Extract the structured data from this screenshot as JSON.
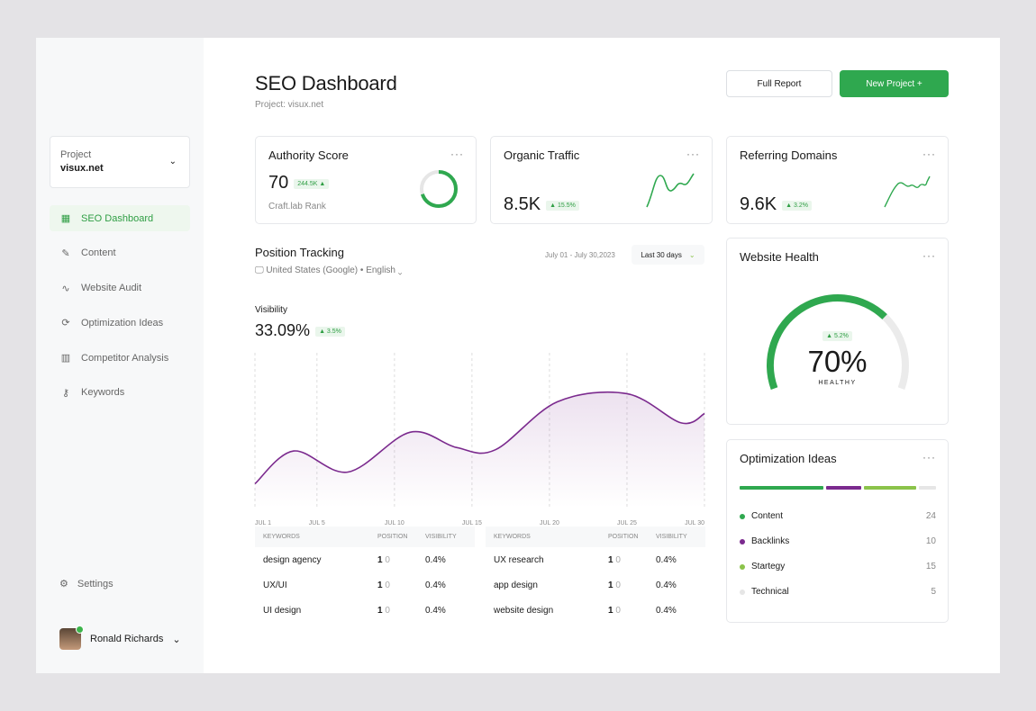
{
  "sidebar": {
    "project_label": "Project",
    "project_value": "visux.net",
    "items": [
      {
        "label": "SEO Dashboard",
        "icon": "grid-icon",
        "active": true
      },
      {
        "label": "Content",
        "icon": "pencil-icon"
      },
      {
        "label": "Website Audit",
        "icon": "pulse-icon"
      },
      {
        "label": "Optimization Ideas",
        "icon": "refresh-icon"
      },
      {
        "label": "Competitor Analysis",
        "icon": "bar-chart-icon"
      },
      {
        "label": "Keywords",
        "icon": "key-icon"
      }
    ],
    "settings": "Settings",
    "user": "Ronald Richards"
  },
  "header": {
    "title": "SEO Dashboard",
    "subtitle": "Project: visux.net",
    "full_report": "Full Report",
    "new_project": "New Project +"
  },
  "colors": {
    "accent": "#2fa84f",
    "purple": "#7b2a8e",
    "lightgreen": "#8bc34a"
  },
  "authority": {
    "title": "Authority Score",
    "value": "70",
    "badge": "244.5K ▲",
    "caption": "Craft.lab Rank",
    "ring_percent": 70
  },
  "organic": {
    "title": "Organic Traffic",
    "value": "8.5K",
    "badge": "▲ 15.5%"
  },
  "referring": {
    "title": "Referring Domains",
    "value": "9.6K",
    "badge": "▲ 3.2%"
  },
  "tracking": {
    "title": "Position Tracking",
    "location": "United States (Google) • English",
    "date_range": "July 01 - July 30,2023",
    "period": "Last 30 days",
    "visibility_label": "Visibility",
    "visibility_value": "33.09%",
    "visibility_badge": "▲ 3.5%"
  },
  "chart_data": {
    "type": "area",
    "x_ticks": [
      "JUL 1",
      "JUL 5",
      "JUL 10",
      "JUL 15",
      "JUL 20",
      "JUL 25",
      "JUL 30"
    ],
    "x": [
      1,
      3.5,
      7,
      11,
      14,
      16.5,
      20.5,
      25,
      28.5,
      30
    ],
    "y": [
      15,
      43,
      25,
      59,
      46,
      44,
      85,
      92,
      67,
      75
    ]
  },
  "tables": [
    {
      "headers": [
        "KEYWORDS",
        "POSITION",
        "VISIBILITY"
      ],
      "rows": [
        [
          "design agency",
          "1",
          "0",
          "0.4%"
        ],
        [
          "UX/UI",
          "1",
          "0",
          "0.4%"
        ],
        [
          "UI design",
          "1",
          "0",
          "0.4%"
        ]
      ]
    },
    {
      "headers": [
        "KEYWORDS",
        "POSITION",
        "VISIBILITY"
      ],
      "rows": [
        [
          "UX research",
          "1",
          "0",
          "0.4%"
        ],
        [
          "app design",
          "1",
          "0",
          "0.4%"
        ],
        [
          "website design",
          "1",
          "0",
          "0.4%"
        ]
      ]
    }
  ],
  "health": {
    "title": "Website Health",
    "value": "70%",
    "label": "HEALTHY",
    "badge": "▲ 5.2%",
    "percent": 70
  },
  "ideas": {
    "title": "Optimization Ideas",
    "items": [
      {
        "label": "Content",
        "count": "24",
        "color": "#2fa84f"
      },
      {
        "label": "Backlinks",
        "count": "10",
        "color": "#7b2a8e"
      },
      {
        "label": "Startegy",
        "count": "15",
        "color": "#8bc34a"
      },
      {
        "label": "Technical",
        "count": "5",
        "color": "#e6e6e6"
      }
    ]
  }
}
